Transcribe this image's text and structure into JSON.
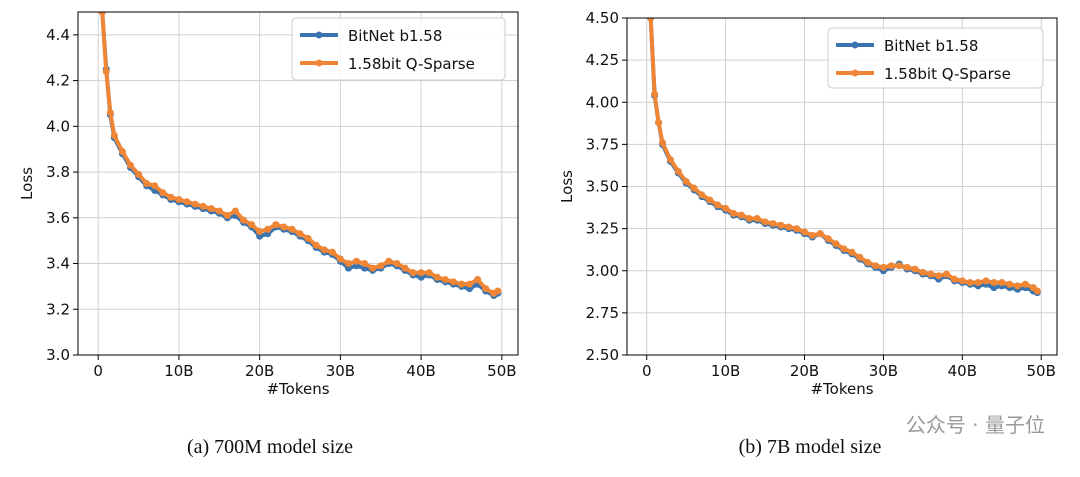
{
  "chart_data": [
    {
      "type": "line",
      "caption": "(a) 700M model size",
      "xlabel": "#Tokens",
      "ylabel": "Loss",
      "x": [
        0.5,
        1,
        1.5,
        2,
        3,
        4,
        5,
        6,
        7,
        8,
        9,
        10,
        11,
        12,
        13,
        14,
        15,
        16,
        17,
        18,
        19,
        20,
        21,
        22,
        23,
        24,
        25,
        26,
        27,
        28,
        29,
        30,
        31,
        32,
        33,
        34,
        35,
        36,
        37,
        38,
        39,
        40,
        41,
        42,
        43,
        44,
        45,
        46,
        47,
        48,
        49,
        49.5
      ],
      "series": [
        {
          "name": "BitNet b1.58",
          "color": "#3b75af",
          "values": [
            4.5,
            4.25,
            4.05,
            3.95,
            3.88,
            3.82,
            3.78,
            3.74,
            3.72,
            3.7,
            3.68,
            3.67,
            3.66,
            3.65,
            3.64,
            3.63,
            3.62,
            3.6,
            3.61,
            3.58,
            3.56,
            3.52,
            3.53,
            3.56,
            3.55,
            3.54,
            3.52,
            3.5,
            3.47,
            3.45,
            3.44,
            3.41,
            3.38,
            3.39,
            3.38,
            3.37,
            3.38,
            3.4,
            3.39,
            3.37,
            3.35,
            3.34,
            3.35,
            3.33,
            3.32,
            3.31,
            3.3,
            3.29,
            3.31,
            3.28,
            3.26,
            3.27
          ]
        },
        {
          "name": "1.58bit Q-Sparse",
          "color": "#ef8636",
          "values": [
            4.5,
            4.24,
            4.06,
            3.96,
            3.89,
            3.83,
            3.79,
            3.75,
            3.74,
            3.71,
            3.69,
            3.68,
            3.67,
            3.66,
            3.65,
            3.64,
            3.63,
            3.61,
            3.63,
            3.59,
            3.57,
            3.54,
            3.55,
            3.57,
            3.56,
            3.55,
            3.53,
            3.51,
            3.48,
            3.46,
            3.45,
            3.42,
            3.4,
            3.41,
            3.4,
            3.38,
            3.39,
            3.41,
            3.4,
            3.38,
            3.36,
            3.36,
            3.36,
            3.34,
            3.33,
            3.32,
            3.31,
            3.31,
            3.33,
            3.29,
            3.27,
            3.28
          ]
        }
      ],
      "xlim": [
        -2.5,
        52
      ],
      "xticks": [
        0,
        {
          "value": 10,
          "label": "10B"
        },
        {
          "value": 20,
          "label": "20B"
        },
        {
          "value": 30,
          "label": "30B"
        },
        {
          "value": 40,
          "label": "40B"
        },
        {
          "value": 50,
          "label": "50B"
        }
      ],
      "ylim": [
        3.0,
        4.5
      ],
      "yticks": [
        {
          "value": 3,
          "label": "3.0"
        },
        3.2,
        3.4,
        3.6,
        3.8,
        {
          "value": 4,
          "label": "4.0"
        },
        4.2,
        4.4
      ],
      "grid": true,
      "legend": "upper right"
    },
    {
      "type": "line",
      "caption": "(b) 7B model size",
      "xlabel": "#Tokens",
      "ylabel": "Loss",
      "x": [
        0.5,
        1,
        1.5,
        2,
        3,
        4,
        5,
        6,
        7,
        8,
        9,
        10,
        11,
        12,
        13,
        14,
        15,
        16,
        17,
        18,
        19,
        20,
        21,
        22,
        23,
        24,
        25,
        26,
        27,
        28,
        29,
        30,
        31,
        32,
        33,
        34,
        35,
        36,
        37,
        38,
        39,
        40,
        41,
        42,
        43,
        44,
        45,
        46,
        47,
        48,
        49,
        49.5
      ],
      "series": [
        {
          "name": "BitNet b1.58",
          "color": "#3b75af",
          "values": [
            4.5,
            4.04,
            3.88,
            3.75,
            3.65,
            3.58,
            3.52,
            3.48,
            3.44,
            3.41,
            3.38,
            3.36,
            3.33,
            3.32,
            3.3,
            3.3,
            3.28,
            3.27,
            3.26,
            3.25,
            3.24,
            3.22,
            3.2,
            3.22,
            3.18,
            3.15,
            3.12,
            3.1,
            3.07,
            3.04,
            3.02,
            3.0,
            3.02,
            3.04,
            3.01,
            3.0,
            2.98,
            2.97,
            2.95,
            2.97,
            2.94,
            2.93,
            2.92,
            2.91,
            2.92,
            2.9,
            2.91,
            2.9,
            2.89,
            2.9,
            2.88,
            2.87
          ]
        },
        {
          "name": "1.58bit Q-Sparse",
          "color": "#ef8636",
          "values": [
            4.5,
            4.05,
            3.88,
            3.76,
            3.66,
            3.59,
            3.53,
            3.49,
            3.45,
            3.42,
            3.39,
            3.37,
            3.34,
            3.33,
            3.31,
            3.31,
            3.29,
            3.28,
            3.27,
            3.26,
            3.25,
            3.23,
            3.21,
            3.22,
            3.19,
            3.16,
            3.13,
            3.11,
            3.08,
            3.05,
            3.03,
            3.02,
            3.03,
            3.03,
            3.02,
            3.01,
            2.99,
            2.98,
            2.97,
            2.98,
            2.95,
            2.94,
            2.93,
            2.93,
            2.94,
            2.93,
            2.93,
            2.92,
            2.91,
            2.92,
            2.9,
            2.88
          ]
        }
      ],
      "xlim": [
        -2.5,
        52
      ],
      "xticks": [
        0,
        {
          "value": 10,
          "label": "10B"
        },
        {
          "value": 20,
          "label": "20B"
        },
        {
          "value": 30,
          "label": "30B"
        },
        {
          "value": 40,
          "label": "40B"
        },
        {
          "value": 50,
          "label": "50B"
        }
      ],
      "ylim": [
        2.5,
        4.5
      ],
      "yticks": [
        {
          "value": 2.5,
          "label": "2.50"
        },
        2.75,
        {
          "value": 3,
          "label": "3.00"
        },
        3.25,
        {
          "value": 3.5,
          "label": "3.50"
        },
        3.75,
        {
          "value": 4,
          "label": "4.00"
        },
        4.25,
        {
          "value": 4.5,
          "label": "4.50"
        }
      ],
      "grid": true,
      "legend": "upper right"
    }
  ],
  "watermark": "公众号 · 量子位"
}
